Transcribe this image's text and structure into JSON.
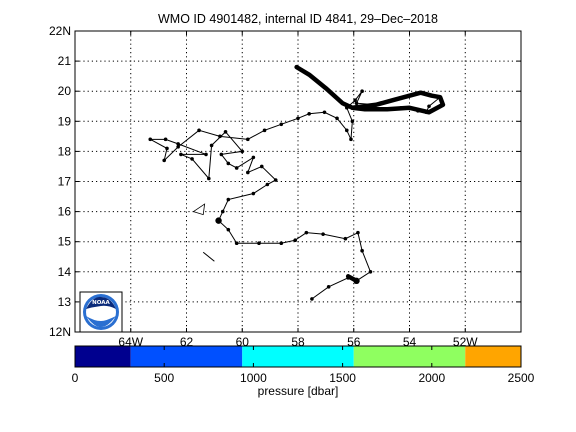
{
  "chart_data": {
    "type": "scatter",
    "title": "WMO ID 4901482, internal ID 4841, 29–Dec–2018",
    "x_range": [
      -66,
      -50
    ],
    "y_range": [
      12,
      22
    ],
    "x_ticks": [
      {
        "value": -64,
        "label": "64W"
      },
      {
        "value": -62,
        "label": "62"
      },
      {
        "value": -60,
        "label": "60"
      },
      {
        "value": -58,
        "label": "58"
      },
      {
        "value": -56,
        "label": "56"
      },
      {
        "value": -54,
        "label": "54"
      },
      {
        "value": -52,
        "label": "52W"
      }
    ],
    "y_ticks": [
      {
        "value": 12,
        "label": "12N"
      },
      {
        "value": 13,
        "label": "13"
      },
      {
        "value": 14,
        "label": "14"
      },
      {
        "value": 15,
        "label": "15"
      },
      {
        "value": 16,
        "label": "16"
      },
      {
        "value": 17,
        "label": "17"
      },
      {
        "value": 18,
        "label": "18"
      },
      {
        "value": 19,
        "label": "19"
      },
      {
        "value": 20,
        "label": "20"
      },
      {
        "value": 21,
        "label": "21"
      },
      {
        "value": 22,
        "label": "22N"
      }
    ],
    "grid": true,
    "track": [
      [
        -57.5,
        13.1
      ],
      [
        -56.9,
        13.5
      ],
      [
        -56.2,
        13.8
      ],
      [
        -55.9,
        13.7
      ],
      [
        -55.4,
        14.0
      ],
      [
        -55.7,
        14.7
      ],
      [
        -55.85,
        15.3
      ],
      [
        -56.3,
        15.1
      ],
      [
        -57.1,
        15.25
      ],
      [
        -57.7,
        15.3
      ],
      [
        -58.1,
        15.05
      ],
      [
        -58.6,
        14.95
      ],
      [
        -59.4,
        14.95
      ],
      [
        -60.2,
        14.95
      ],
      [
        -60.5,
        15.4
      ],
      [
        -60.85,
        15.7
      ],
      [
        -60.7,
        16.0
      ],
      [
        -60.5,
        16.4
      ],
      [
        -59.6,
        16.6
      ],
      [
        -59.1,
        16.9
      ],
      [
        -58.8,
        17.05
      ],
      [
        -59.3,
        17.5
      ],
      [
        -59.8,
        17.3
      ],
      [
        -59.6,
        17.8
      ],
      [
        -60.2,
        17.45
      ],
      [
        -60.5,
        17.6
      ],
      [
        -60.75,
        17.9
      ],
      [
        -60.0,
        18.0
      ],
      [
        -60.6,
        18.65
      ],
      [
        -61.1,
        18.2
      ],
      [
        -61.2,
        17.1
      ],
      [
        -61.8,
        17.75
      ],
      [
        -62.2,
        17.9
      ],
      [
        -61.3,
        17.9
      ],
      [
        -62.3,
        18.25
      ],
      [
        -62.75,
        18.4
      ],
      [
        -63.3,
        18.4
      ],
      [
        -62.7,
        18.1
      ],
      [
        -62.8,
        17.7
      ],
      [
        -62.3,
        18.15
      ],
      [
        -61.55,
        18.7
      ],
      [
        -60.8,
        18.5
      ],
      [
        -59.8,
        18.4
      ],
      [
        -59.2,
        18.7
      ],
      [
        -58.6,
        18.9
      ],
      [
        -58.0,
        19.1
      ],
      [
        -57.6,
        19.25
      ],
      [
        -57.05,
        19.3
      ],
      [
        -56.6,
        19.1
      ],
      [
        -56.25,
        18.7
      ],
      [
        -56.1,
        18.4
      ],
      [
        -56.05,
        19.0
      ],
      [
        -56.25,
        19.45
      ],
      [
        -55.95,
        19.7
      ],
      [
        -55.7,
        20.0
      ],
      [
        -55.9,
        19.6
      ],
      [
        -55.2,
        19.55
      ],
      [
        -54.6,
        19.7
      ],
      [
        -54.0,
        19.85
      ],
      [
        -53.6,
        19.95
      ],
      [
        -53.2,
        19.85
      ],
      [
        -52.9,
        19.8
      ],
      [
        -53.3,
        19.5
      ],
      [
        -53.4,
        19.3
      ],
      [
        -53.7,
        19.35
      ],
      [
        -54.3,
        19.45
      ],
      [
        -54.9,
        19.4
      ],
      [
        -55.6,
        19.4
      ],
      [
        -56.05,
        19.45
      ],
      [
        -56.4,
        19.6
      ],
      [
        -57.0,
        20.1
      ],
      [
        -57.6,
        20.55
      ],
      [
        -58.05,
        20.8
      ]
    ],
    "track_heavy_segments": [
      [
        [
          -56.2,
          13.85
        ],
        [
          -55.9,
          13.7
        ]
      ],
      [
        [
          -56.05,
          19.45
        ],
        [
          -55.2,
          19.55
        ],
        [
          -54.6,
          19.7
        ],
        [
          -54.0,
          19.85
        ],
        [
          -53.6,
          19.95
        ],
        [
          -53.2,
          19.85
        ],
        [
          -52.9,
          19.8
        ],
        [
          -52.8,
          19.55
        ],
        [
          -53.3,
          19.3
        ],
        [
          -54.0,
          19.45
        ],
        [
          -54.8,
          19.4
        ],
        [
          -55.6,
          19.4
        ],
        [
          -56.05,
          19.45
        ]
      ],
      [
        [
          -56.05,
          19.45
        ],
        [
          -56.4,
          19.6
        ],
        [
          -57.0,
          20.1
        ],
        [
          -57.6,
          20.55
        ],
        [
          -58.05,
          20.8
        ]
      ]
    ],
    "detached_segment": [
      [
        -61.4,
        14.65
      ],
      [
        -61.0,
        14.35
      ]
    ],
    "triangle_marker": [
      [
        -61.75,
        16.0
      ],
      [
        -61.35,
        16.25
      ],
      [
        -61.4,
        15.9
      ]
    ],
    "colorbar": {
      "label": "pressure [dbar]",
      "range": [
        0,
        2500
      ],
      "ticks": [
        0,
        500,
        1000,
        1500,
        2000,
        2500
      ],
      "bins": [
        {
          "from": 0,
          "to": 312.5,
          "color": "#00008f"
        },
        {
          "from": 312.5,
          "to": 937.5,
          "color": "#0050ff"
        },
        {
          "from": 937.5,
          "to": 1562.5,
          "color": "#00ffff"
        },
        {
          "from": 1562.5,
          "to": 2187.5,
          "color": "#8fff60"
        },
        {
          "from": 2187.5,
          "to": 2500,
          "color": "#ffa500"
        }
      ]
    },
    "logo": {
      "text": "NOAA",
      "colors": {
        "outer": "#2a6fd1",
        "inner": "#0a2a7a",
        "bird": "#ffffff"
      }
    }
  }
}
